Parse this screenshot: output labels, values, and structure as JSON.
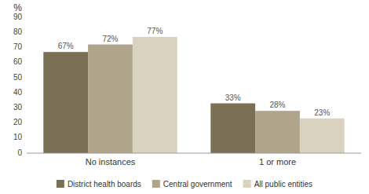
{
  "chart_data": {
    "type": "bar",
    "y_label": "%",
    "categories": [
      "No instances",
      "1 or more"
    ],
    "series": [
      {
        "name": "District health boards",
        "color": "#7a7055",
        "values": [
          67,
          33
        ],
        "value_labels": [
          "67%",
          "33%"
        ]
      },
      {
        "name": "Central government",
        "color": "#b0a58a",
        "values": [
          72,
          28
        ],
        "value_labels": [
          "72%",
          "28%"
        ]
      },
      {
        "name": "All public entities",
        "color": "#d8d2be",
        "values": [
          77,
          23
        ],
        "value_labels": [
          "77%",
          "23%"
        ]
      }
    ],
    "ylim": [
      0,
      90
    ],
    "yticks": [
      0,
      10,
      20,
      30,
      40,
      50,
      60,
      70,
      80,
      90
    ],
    "grid": false,
    "legend": "bottom",
    "data_labels": true
  }
}
